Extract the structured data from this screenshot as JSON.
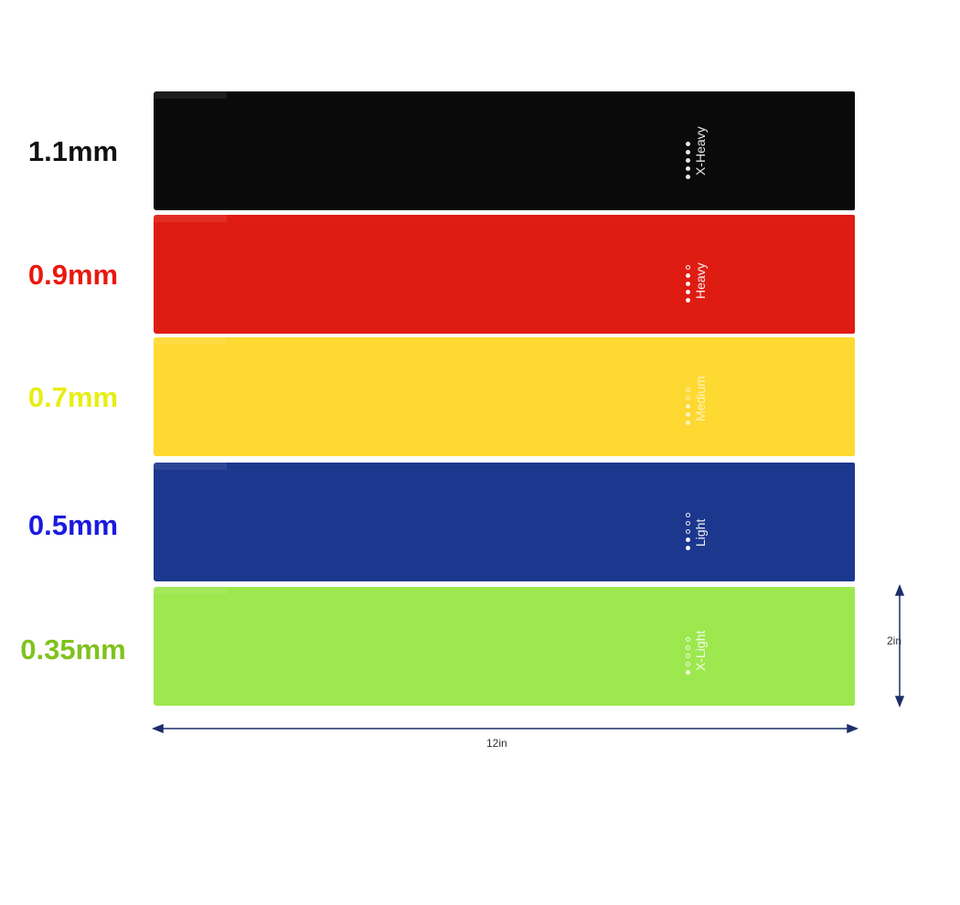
{
  "bands": [
    {
      "thickness": "1.1mm",
      "label_color": "#111111",
      "band_color": "#0a0a0a",
      "level": "X-Heavy",
      "level_color": "#e8e8e8",
      "filled_dots": 5,
      "total_dots": 5
    },
    {
      "thickness": "0.9mm",
      "label_color": "#e8180f",
      "band_color": "#df1c12",
      "level": "Heavy",
      "level_color": "#f2f2f2",
      "filled_dots": 4,
      "total_dots": 5
    },
    {
      "thickness": "0.7mm",
      "label_color": "#e8ee12",
      "band_color": "#fed931",
      "level": "Medium",
      "level_color": "#fff3c0",
      "filled_dots": 3,
      "total_dots": 5
    },
    {
      "thickness": "0.5mm",
      "label_color": "#1a1ae0",
      "band_color": "#1c378e",
      "level": "Light",
      "level_color": "#f0f0f0",
      "filled_dots": 2,
      "total_dots": 5
    },
    {
      "thickness": "0.35mm",
      "label_color": "#80c21c",
      "band_color": "#9de84f",
      "level": "X-Light",
      "level_color": "#f4fbe8",
      "filled_dots": 1,
      "total_dots": 5
    }
  ],
  "dimensions": {
    "width": "12in",
    "height": "2in",
    "arrow_color": "#1c2f6a"
  }
}
